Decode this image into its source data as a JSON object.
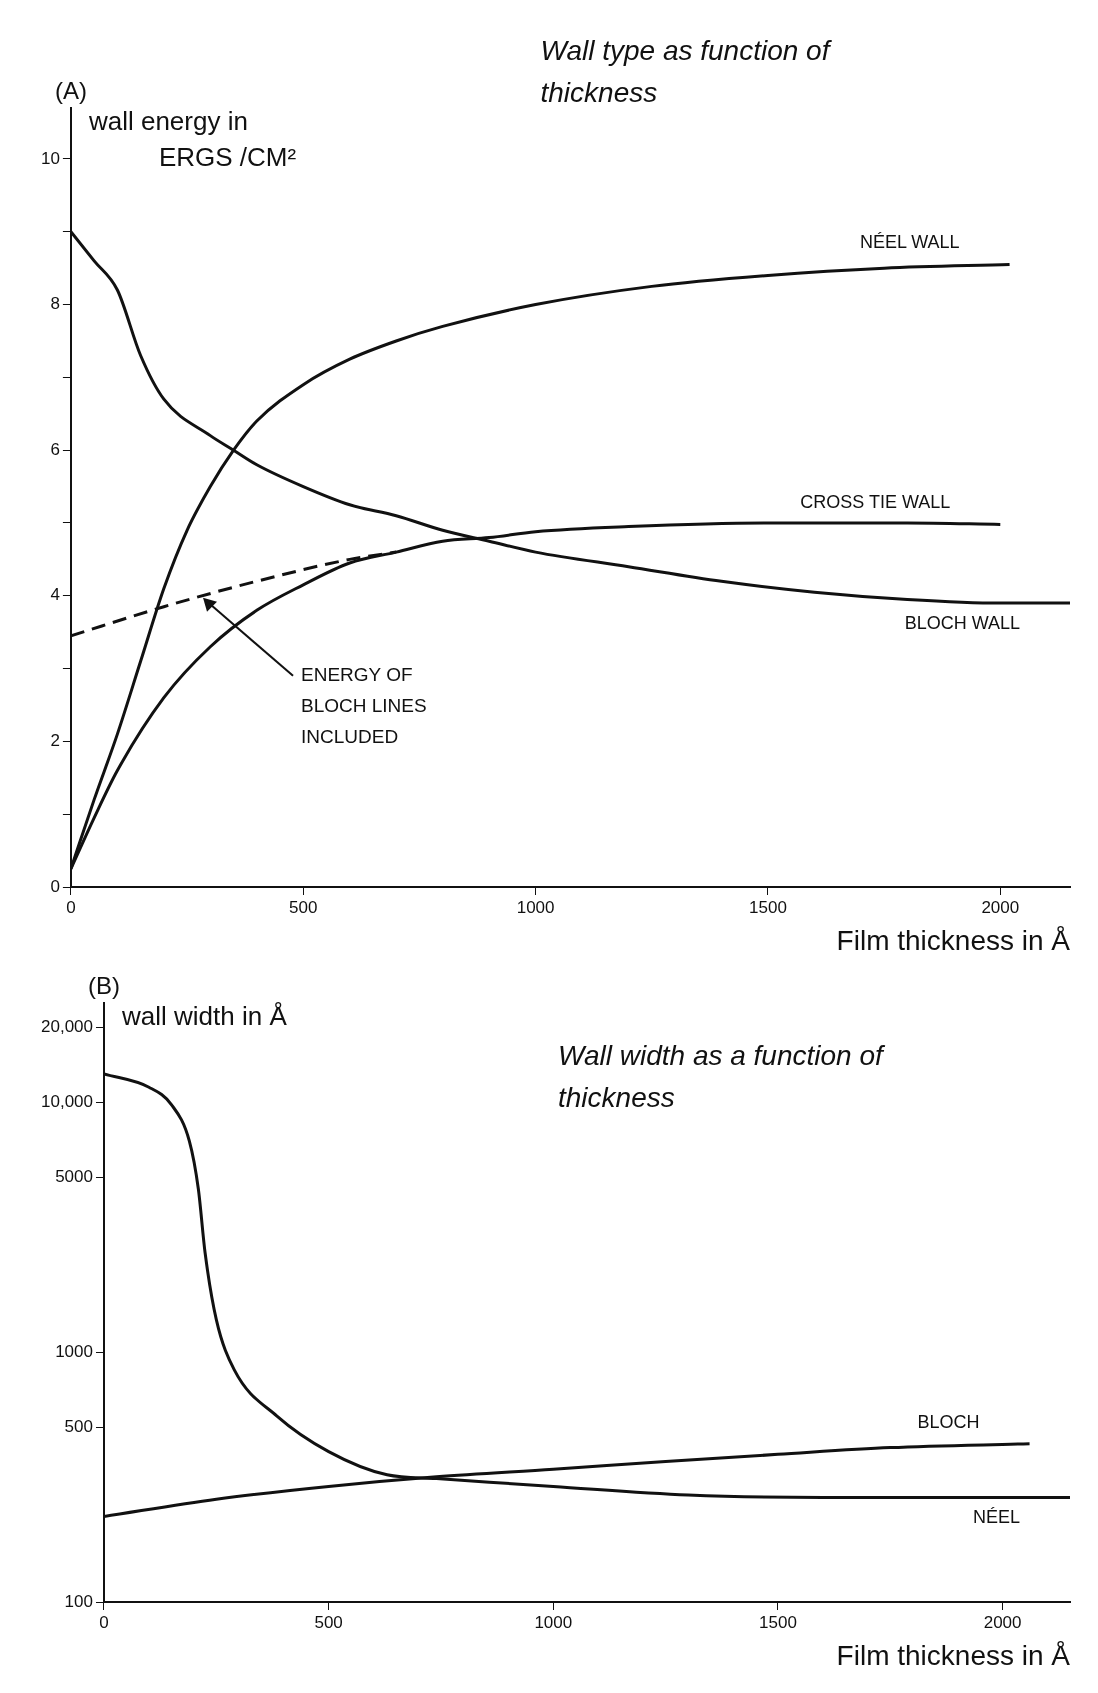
{
  "chart_data": [
    {
      "type": "line",
      "title": "Wall type as function of thickness",
      "xlabel": "Film thickness in Å",
      "ylabel": "wall energy in ERGS /CM²",
      "annotations": [
        "(A)",
        {
          "text": "ENERGY OF BLOCH LINES INCLUDED",
          "x": 280,
          "y": 4.0
        }
      ],
      "xlim": [
        0,
        2150
      ],
      "xticks": [
        0,
        500,
        1000,
        1500,
        2000
      ],
      "ylim": [
        0,
        10.7
      ],
      "yticks": [
        0,
        {
          "value": 1,
          "label": null
        },
        2,
        {
          "value": 3,
          "label": null
        },
        4,
        {
          "value": 5,
          "label": null
        },
        6,
        {
          "value": 7,
          "label": null
        },
        8,
        {
          "value": 9,
          "label": null
        },
        10
      ],
      "grid": false,
      "legend": false,
      "marker": "none",
      "series": [
        {
          "name": "NÉEL WALL",
          "color": "#111111",
          "x": [
            0,
            50,
            100,
            150,
            200,
            250,
            300,
            350,
            400,
            500,
            600,
            700,
            800,
            1000,
            1250,
            1500,
            1750,
            2020
          ],
          "values": [
            0.25,
            1.2,
            2.1,
            3.1,
            4.1,
            4.9,
            5.5,
            6.0,
            6.4,
            6.9,
            7.25,
            7.5,
            7.7,
            8.0,
            8.25,
            8.4,
            8.5,
            8.55
          ]
        },
        {
          "name": "CROSS TIE WALL",
          "color": "#111111",
          "x": [
            0,
            50,
            100,
            200,
            300,
            400,
            500,
            600,
            700,
            800,
            900,
            1000,
            1200,
            1500,
            1800,
            2000
          ],
          "values": [
            0.25,
            0.95,
            1.6,
            2.6,
            3.3,
            3.8,
            4.15,
            4.45,
            4.6,
            4.75,
            4.8,
            4.88,
            4.95,
            5.0,
            5.0,
            4.98
          ]
        },
        {
          "name": "BLOCH WALL",
          "color": "#111111",
          "x": [
            0,
            50,
            100,
            150,
            200,
            300,
            350,
            400,
            500,
            600,
            700,
            800,
            900,
            1000,
            1200,
            1400,
            1600,
            1800,
            2000,
            2150
          ],
          "values": [
            9.0,
            8.6,
            8.2,
            7.3,
            6.7,
            6.2,
            6.0,
            5.8,
            5.5,
            5.25,
            5.1,
            4.9,
            4.75,
            4.6,
            4.4,
            4.2,
            4.05,
            3.95,
            3.9,
            3.9
          ]
        },
        {
          "color": "#111111",
          "line_style": "dashed",
          "x": [
            0,
            200,
            400,
            600,
            700
          ],
          "values": [
            3.45,
            3.85,
            4.2,
            4.5,
            4.6
          ]
        }
      ]
    },
    {
      "type": "line",
      "title": "Wall width as a function of thickness",
      "xlabel": "Film thickness in Å",
      "ylabel": "wall width in Å",
      "annotations": [
        "(B)"
      ],
      "log": "y",
      "xlim": [
        0,
        2150
      ],
      "xticks": [
        0,
        500,
        1000,
        1500,
        2000
      ],
      "ylim": [
        100,
        25000
      ],
      "yticks": [
        100,
        500,
        1000,
        5000,
        {
          "value": 10000,
          "label": "10,000"
        },
        {
          "value": 20000,
          "label": "20,000"
        }
      ],
      "grid": false,
      "legend": false,
      "marker": "none",
      "series": [
        {
          "name": "NÉEL",
          "color": "#111111",
          "x": [
            0,
            100,
            150,
            190,
            210,
            225,
            250,
            290,
            385,
            500,
            630,
            740,
            1000,
            1300,
            1600,
            2150
          ],
          "values": [
            13000,
            11500,
            9800,
            7000,
            4500,
            2500,
            1350,
            850,
            555,
            400,
            323,
            312,
            290,
            268,
            262,
            262
          ]
        },
        {
          "name": "BLOCH",
          "color": "#111111",
          "x": [
            0,
            250,
            500,
            740,
            1000,
            1250,
            1500,
            1750,
            2060
          ],
          "values": [
            220,
            258,
            290,
            317,
            340,
            365,
            390,
            415,
            430
          ]
        }
      ]
    }
  ]
}
